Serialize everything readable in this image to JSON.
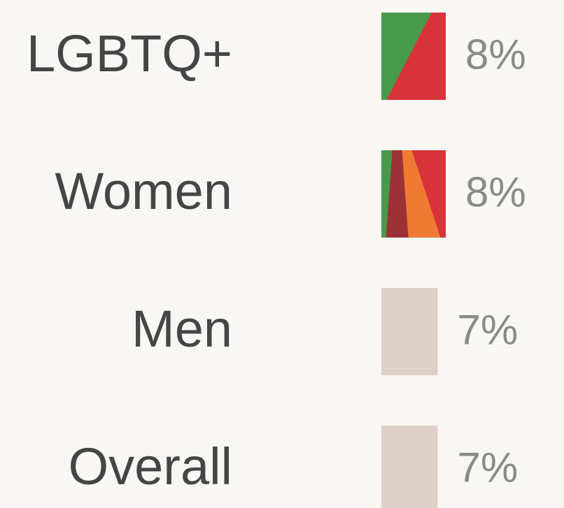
{
  "chart_data": {
    "type": "bar",
    "orientation": "horizontal",
    "categories": [
      "LGBTQ+",
      "Women",
      "Men",
      "Overall"
    ],
    "values": [
      8,
      8,
      7,
      7
    ],
    "value_labels": [
      "8%",
      "8%",
      "7%",
      "7%"
    ],
    "colors": [
      "url(#fill-lgbtq)",
      "url(#fill-women)",
      "#e0d0ca",
      "#e0d0ca"
    ]
  }
}
